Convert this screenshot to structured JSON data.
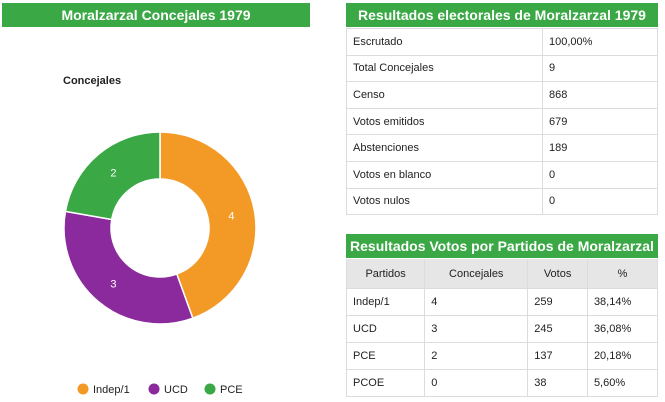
{
  "chart_data": {
    "type": "pie",
    "donut": true,
    "title": "Moralzarzal Concejales 1979",
    "subtitle": "Concejales",
    "legend_position": "bottom",
    "slices": [
      {
        "label": "Indep/1",
        "value": 4,
        "color": "#f39a26"
      },
      {
        "label": "UCD",
        "value": 3,
        "color": "#8a2a9c"
      },
      {
        "label": "PCE",
        "value": 2,
        "color": "#3aa845"
      }
    ]
  },
  "resultados": {
    "title": "Resultados electorales de Moralzarzal 1979",
    "rows": [
      {
        "label": "Escrutado",
        "value": "100,00%"
      },
      {
        "label": "Total Concejales",
        "value": "9"
      },
      {
        "label": "Censo",
        "value": "868"
      },
      {
        "label": "Votos emitidos",
        "value": "679"
      },
      {
        "label": "Abstenciones",
        "value": "189"
      },
      {
        "label": "Votos en blanco",
        "value": "0"
      },
      {
        "label": "Votos nulos",
        "value": "0"
      }
    ]
  },
  "partidos": {
    "title": "Resultados Votos por Partidos de Moralzarzal",
    "headers": [
      "Partidos",
      "Concejales",
      "Votos",
      "%"
    ],
    "rows": [
      [
        "Indep/1",
        "4",
        "259",
        "38,14%"
      ],
      [
        "UCD",
        "3",
        "245",
        "36,08%"
      ],
      [
        "PCE",
        "2",
        "137",
        "20,18%"
      ],
      [
        "PCOE",
        "0",
        "38",
        "5,60%"
      ]
    ]
  }
}
